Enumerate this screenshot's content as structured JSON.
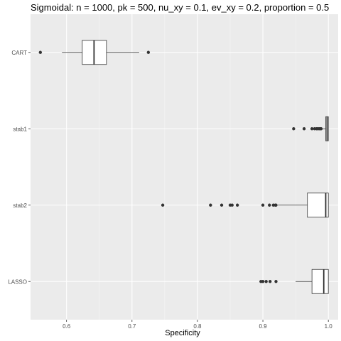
{
  "chart_data": {
    "type": "boxplot",
    "orientation": "horizontal",
    "title": "Sigmoidal: n = 1000, pk = 500, nu_xy = 0.1, ev_xy = 0.2, proportion = 0.5",
    "xlabel": "Specificity",
    "ylabel": "",
    "xlim": [
      0.545,
      1.015
    ],
    "xticks": [
      0.6,
      0.7,
      0.8,
      0.9,
      1.0
    ],
    "xtick_labels": [
      "0.6",
      "0.7",
      "0.8",
      "0.9",
      "1.0"
    ],
    "grid": true,
    "categories": [
      "CART",
      "stab1",
      "stab2",
      "LASSO"
    ],
    "boxes": [
      {
        "name": "CART",
        "whisker_low": 0.593,
        "q1": 0.624,
        "median": 0.642,
        "q3": 0.661,
        "whisker_high": 0.711,
        "outliers": [
          0.56,
          0.725
        ]
      },
      {
        "name": "stab1",
        "whisker_low": 0.99,
        "q1": 0.996,
        "median": 0.998,
        "q3": 1.0,
        "whisker_high": 1.0,
        "outliers": [
          0.947,
          0.963,
          0.975,
          0.979,
          0.982,
          0.984,
          0.986,
          0.988,
          0.989
        ]
      },
      {
        "name": "stab2",
        "whisker_low": 0.923,
        "q1": 0.968,
        "median": 0.996,
        "q3": 1.0,
        "whisker_high": 1.0,
        "outliers": [
          0.747,
          0.82,
          0.837,
          0.85,
          0.853,
          0.861,
          0.9,
          0.91,
          0.916,
          0.919,
          0.92
        ]
      },
      {
        "name": "LASSO",
        "whisker_low": 0.95,
        "q1": 0.975,
        "median": 0.993,
        "q3": 1.0,
        "whisker_high": 1.0,
        "outliers": [
          0.897,
          0.9,
          0.905,
          0.911,
          0.92
        ]
      }
    ]
  },
  "colors": {
    "panel_background": "#EBEBEB",
    "grid_major": "#FFFFFF",
    "grid_minor": "#F5F5F5",
    "box_fill": "#FFFFFF",
    "box_stroke": "#333333",
    "outlier": "#333333",
    "tick_text": "#4D4D4D",
    "tick_mark": "#333333"
  }
}
